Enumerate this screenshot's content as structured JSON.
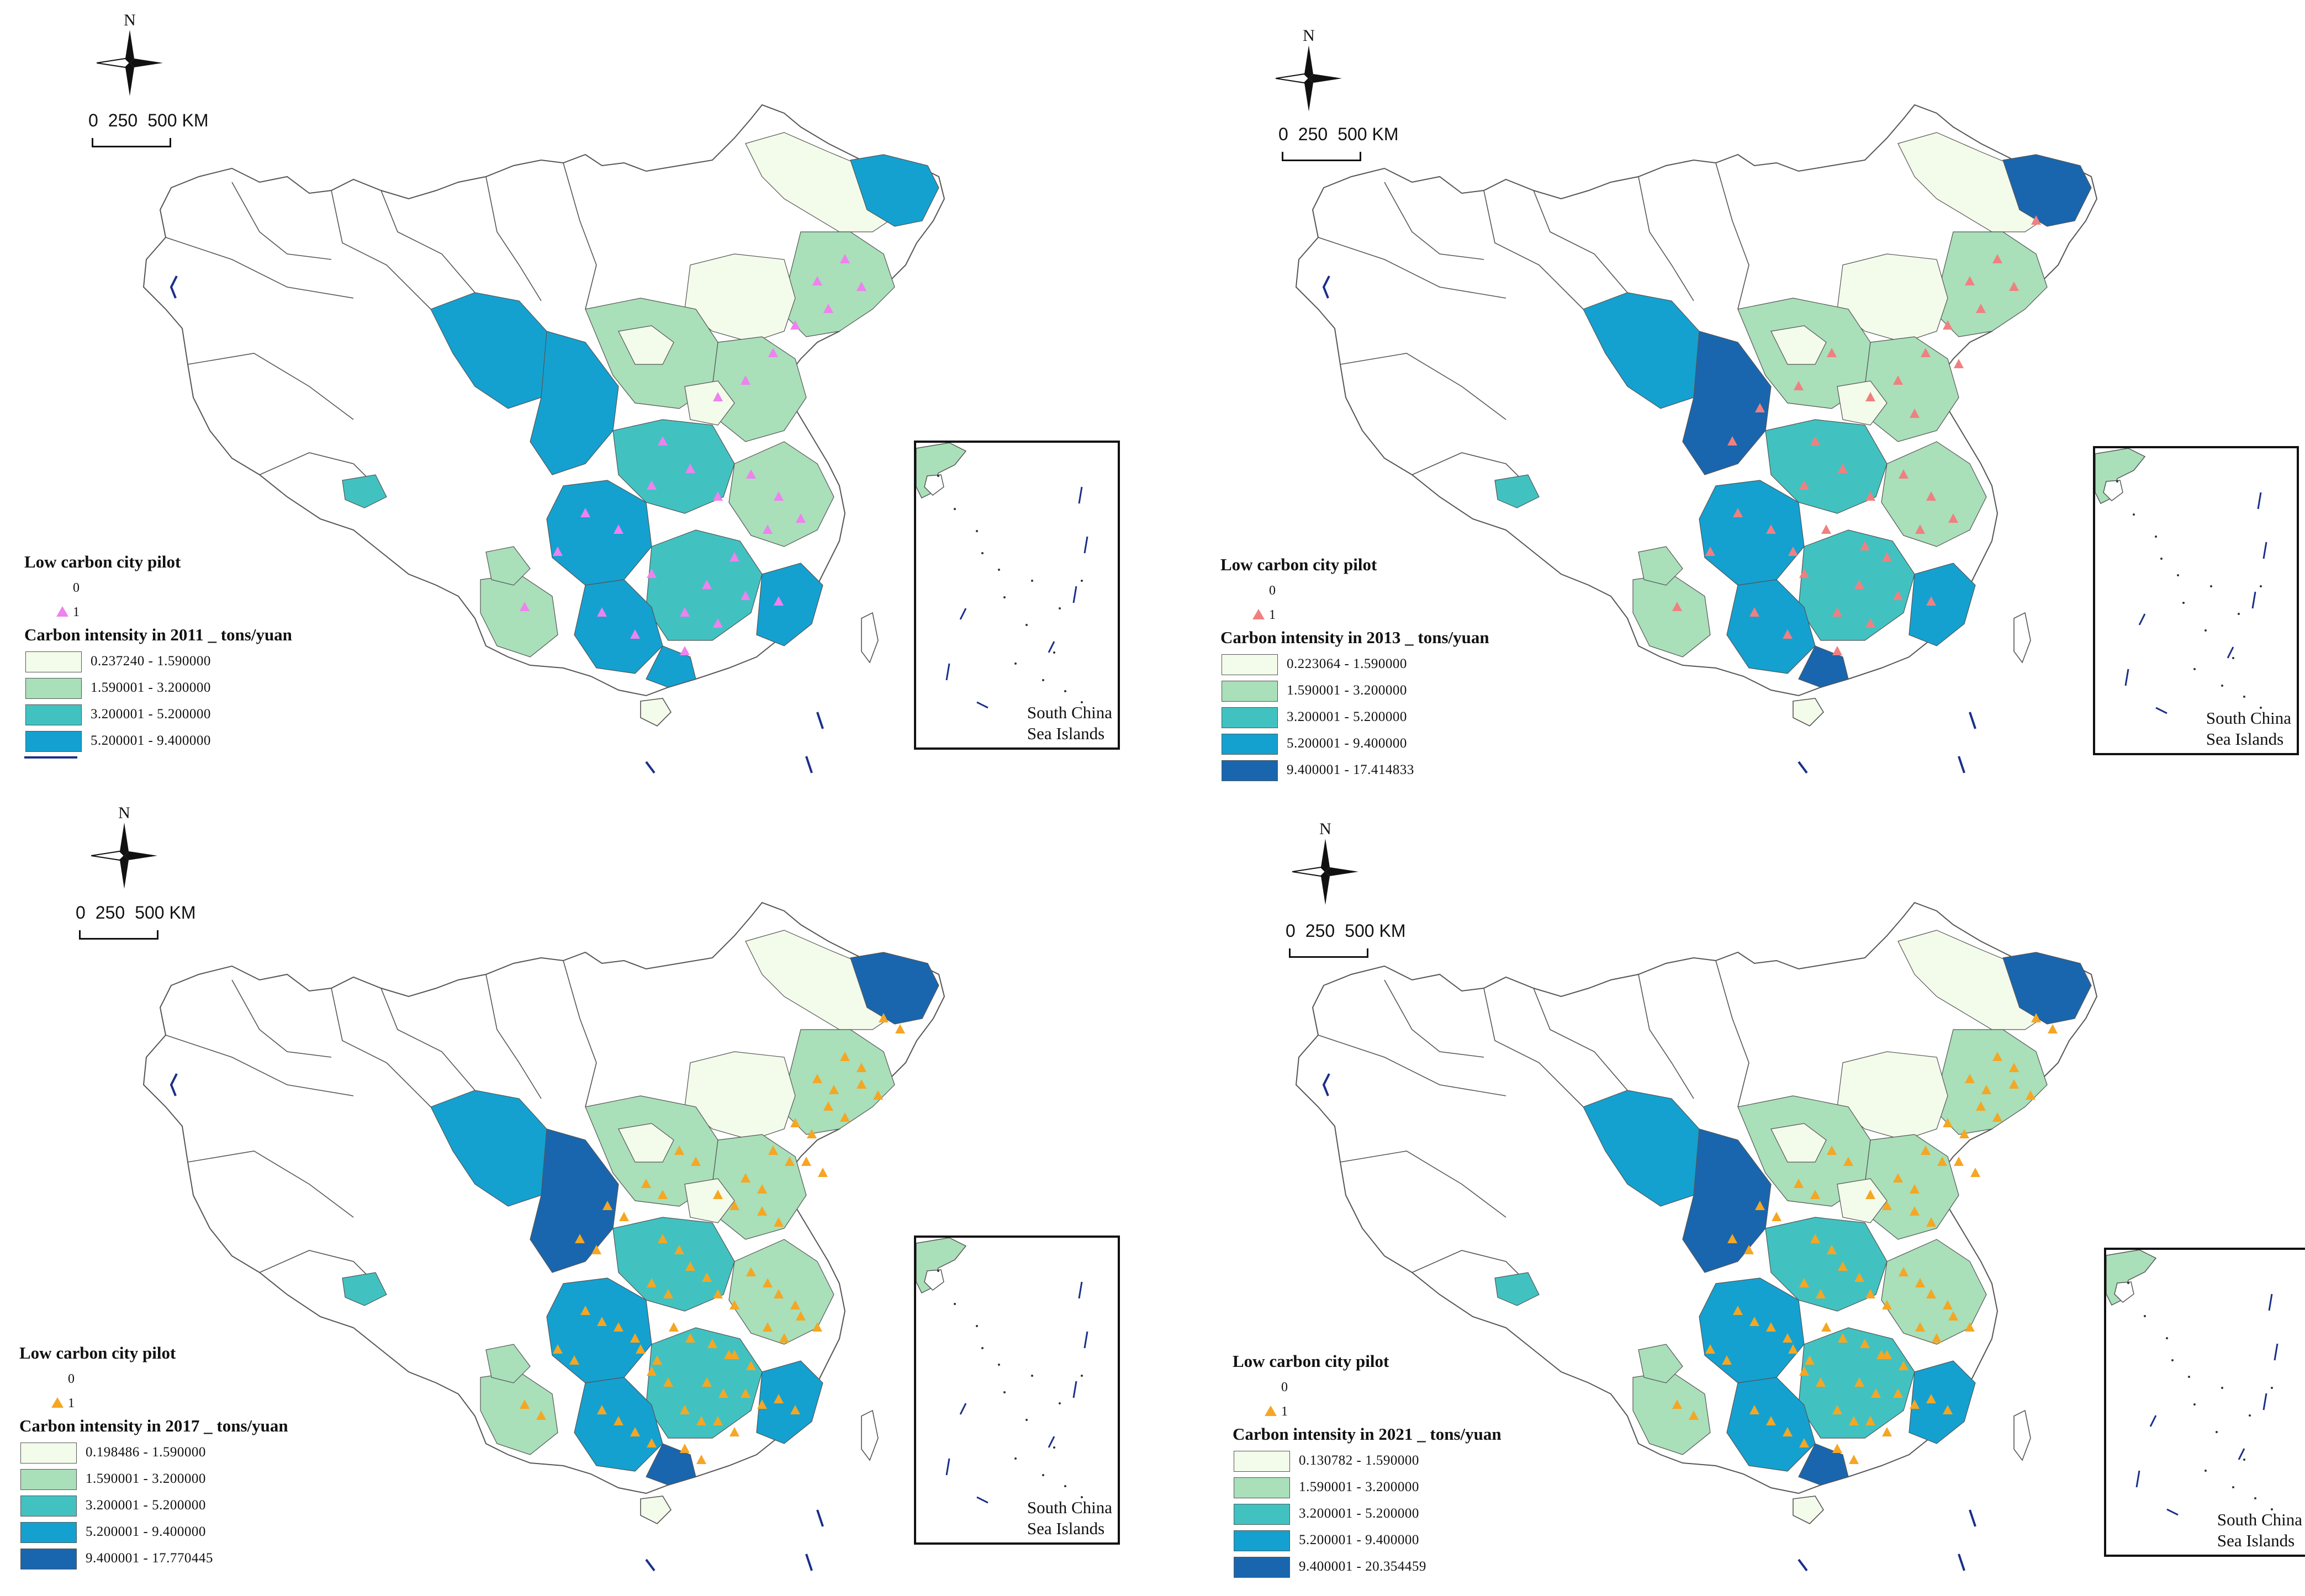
{
  "figure": {
    "compass_letter": "N",
    "scale_labels": [
      "0",
      "250",
      "500 KM"
    ],
    "inset_label": "South China\nSea Islands",
    "pilot_title": "Low carbon city pilot",
    "pilot_value_0": "0",
    "pilot_value_1": "1",
    "colors": {
      "class_1": "#f3fbea",
      "class_2": "#a9dfb9",
      "class_3": "#41c2c1",
      "class_4": "#14a1d0",
      "class_5": "#1966ae",
      "boundary": "#555555",
      "sea_line": "#1a2f8a"
    }
  },
  "panels": [
    {
      "year": "2011",
      "carbon_title": "Carbon intensity in 2011 _ tons/yuan",
      "marker_color": "#ee82ee",
      "classes": [
        "0.237240 - 1.590000",
        "1.590001 - 3.200000",
        "3.200001 - 5.200000",
        "5.200001 - 9.400000"
      ]
    },
    {
      "year": "2013",
      "carbon_title": "Carbon intensity in 2013 _ tons/yuan",
      "marker_color": "#f08080",
      "classes": [
        "0.223064 - 1.590000",
        "1.590001 - 3.200000",
        "3.200001 - 5.200000",
        "5.200001 - 9.400000",
        "9.400001 - 17.414833"
      ]
    },
    {
      "year": "2017",
      "carbon_title": "Carbon intensity in 2017 _ tons/yuan",
      "marker_color": "#f5a623",
      "classes": [
        "0.198486 - 1.590000",
        "1.590001 - 3.200000",
        "3.200001 - 5.200000",
        "5.200001 - 9.400000",
        "9.400001 - 17.770445"
      ]
    },
    {
      "year": "2021",
      "carbon_title": "Carbon intensity in 2021 _ tons/yuan",
      "marker_color": "#f5a623",
      "classes": [
        "0.130782 - 1.590000",
        "1.590001 - 3.200000",
        "3.200001 - 5.200000",
        "5.200001 - 9.400000",
        "9.400001 - 20.354459"
      ]
    }
  ]
}
